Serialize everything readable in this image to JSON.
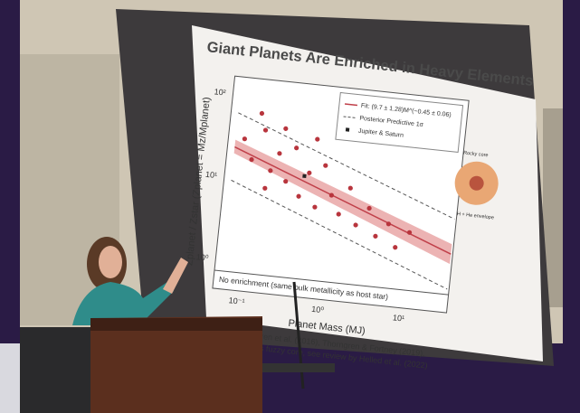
{
  "slide": {
    "title": "Giant Planets Are Enriched in Heavy Elements",
    "y_axis_label": "Zplanet / Zstar (Zplanet = Mz/Mplanet)",
    "x_axis_label": "Planet Mass (MJ)",
    "y_tick_labels": [
      "10²",
      "10¹",
      "10⁰"
    ],
    "x_tick_labels": [
      "10⁻¹",
      "10⁰",
      "10¹"
    ],
    "legend": [
      "Fit: (9.7 ± 1.28)M^(−0.45 ± 0.06)",
      "Posterior Predictive 1σ",
      "Jupiter & Saturn"
    ],
    "baseline_note": "No enrichment (same bulk metallicity as host star)",
    "inset": {
      "core": "Rocky core",
      "envelope": "H + He envelope"
    },
    "citations": [
      "Thorngren et al. (2016), Thorngren & Fortney (2019),",
      "Jupiter's fuzzy core, see review by Helled et al. (2022)"
    ]
  }
}
